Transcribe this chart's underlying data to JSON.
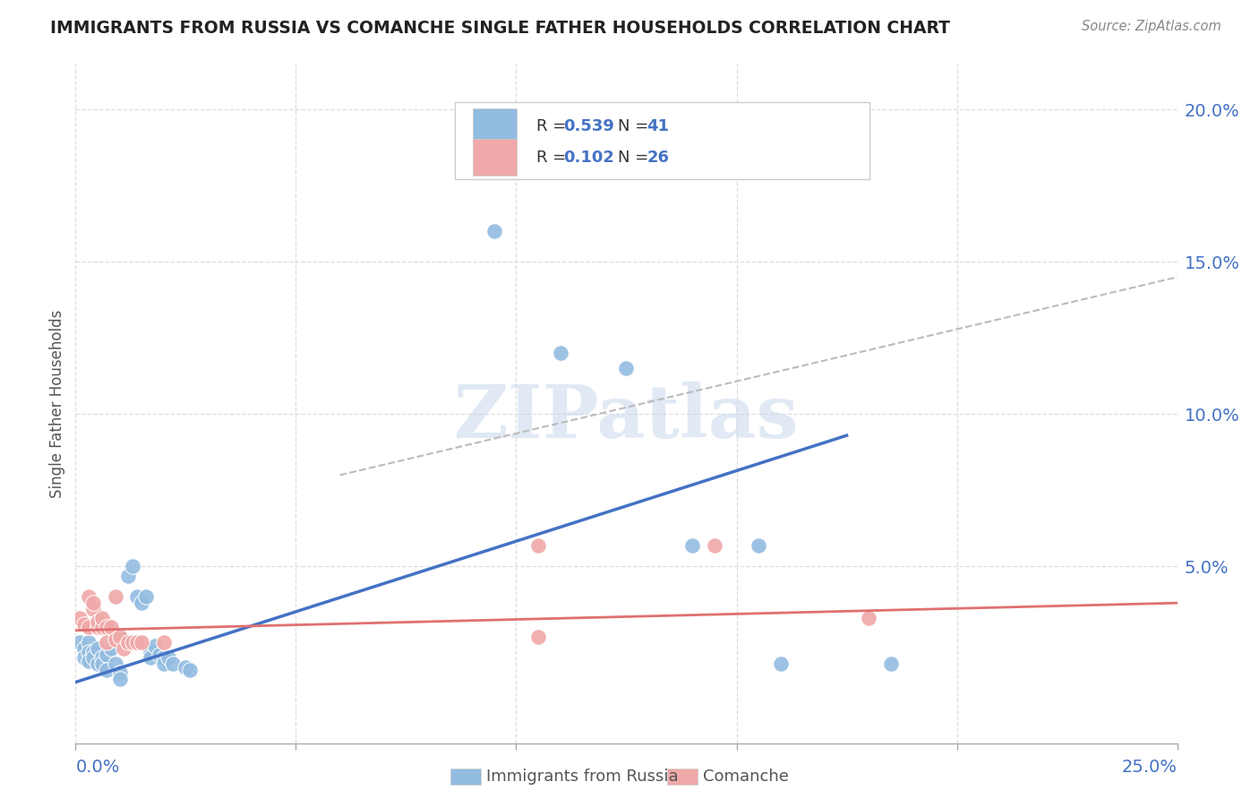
{
  "title": "IMMIGRANTS FROM RUSSIA VS COMANCHE SINGLE FATHER HOUSEHOLDS CORRELATION CHART",
  "source": "Source: ZipAtlas.com",
  "ylabel": "Single Father Households",
  "right_yticks": [
    "20.0%",
    "15.0%",
    "10.0%",
    "5.0%"
  ],
  "right_ytick_vals": [
    0.2,
    0.15,
    0.1,
    0.05
  ],
  "xlim": [
    0.0,
    0.25
  ],
  "ylim": [
    -0.008,
    0.215
  ],
  "blue_color": "#92bce0",
  "pink_color": "#f0a8a8",
  "blue_line_color": "#4472c4",
  "pink_line_color": "#e07070",
  "dashed_line_color": "#bbbbbb",
  "background_color": "#ffffff",
  "grid_color": "#dddddd",
  "russia_points": [
    [
      0.001,
      0.025
    ],
    [
      0.002,
      0.023
    ],
    [
      0.002,
      0.02
    ],
    [
      0.003,
      0.025
    ],
    [
      0.003,
      0.022
    ],
    [
      0.003,
      0.019
    ],
    [
      0.004,
      0.022
    ],
    [
      0.004,
      0.02
    ],
    [
      0.005,
      0.023
    ],
    [
      0.005,
      0.018
    ],
    [
      0.006,
      0.02
    ],
    [
      0.006,
      0.018
    ],
    [
      0.007,
      0.021
    ],
    [
      0.007,
      0.016
    ],
    [
      0.008,
      0.023
    ],
    [
      0.009,
      0.018
    ],
    [
      0.01,
      0.015
    ],
    [
      0.01,
      0.013
    ],
    [
      0.011,
      0.026
    ],
    [
      0.012,
      0.047
    ],
    [
      0.013,
      0.05
    ],
    [
      0.014,
      0.04
    ],
    [
      0.015,
      0.038
    ],
    [
      0.016,
      0.04
    ],
    [
      0.017,
      0.022
    ],
    [
      0.017,
      0.02
    ],
    [
      0.018,
      0.024
    ],
    [
      0.019,
      0.021
    ],
    [
      0.02,
      0.02
    ],
    [
      0.02,
      0.018
    ],
    [
      0.021,
      0.02
    ],
    [
      0.022,
      0.018
    ],
    [
      0.025,
      0.017
    ],
    [
      0.026,
      0.016
    ],
    [
      0.095,
      0.16
    ],
    [
      0.11,
      0.12
    ],
    [
      0.125,
      0.115
    ],
    [
      0.14,
      0.057
    ],
    [
      0.155,
      0.057
    ],
    [
      0.16,
      0.018
    ],
    [
      0.185,
      0.018
    ]
  ],
  "comanche_points": [
    [
      0.001,
      0.033
    ],
    [
      0.002,
      0.031
    ],
    [
      0.003,
      0.03
    ],
    [
      0.003,
      0.04
    ],
    [
      0.004,
      0.036
    ],
    [
      0.004,
      0.038
    ],
    [
      0.005,
      0.03
    ],
    [
      0.005,
      0.032
    ],
    [
      0.006,
      0.03
    ],
    [
      0.006,
      0.033
    ],
    [
      0.007,
      0.03
    ],
    [
      0.007,
      0.025
    ],
    [
      0.008,
      0.03
    ],
    [
      0.009,
      0.026
    ],
    [
      0.009,
      0.04
    ],
    [
      0.01,
      0.027
    ],
    [
      0.011,
      0.023
    ],
    [
      0.012,
      0.025
    ],
    [
      0.013,
      0.025
    ],
    [
      0.014,
      0.025
    ],
    [
      0.015,
      0.025
    ],
    [
      0.02,
      0.025
    ],
    [
      0.105,
      0.057
    ],
    [
      0.105,
      0.027
    ],
    [
      0.145,
      0.057
    ],
    [
      0.18,
      0.033
    ]
  ],
  "russia_trend_x": [
    0.0,
    0.175
  ],
  "russia_trend_y": [
    0.012,
    0.093
  ],
  "comanche_trend_x": [
    0.0,
    0.25
  ],
  "comanche_trend_y": [
    0.029,
    0.038
  ],
  "dashed_trend_x": [
    0.06,
    0.25
  ],
  "dashed_trend_y": [
    0.08,
    0.145
  ]
}
